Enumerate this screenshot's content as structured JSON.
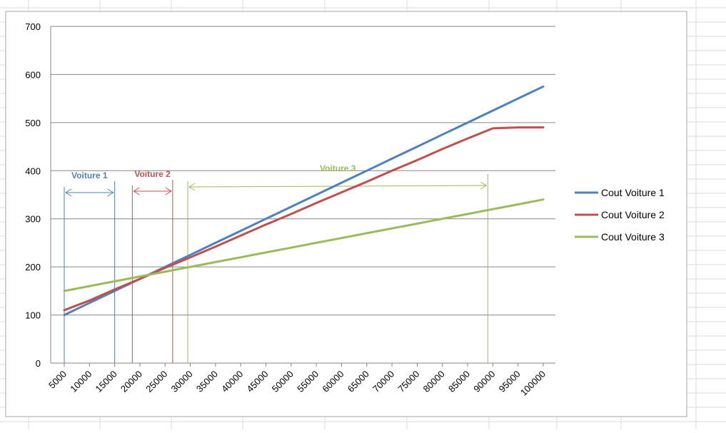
{
  "chart_data": {
    "type": "line",
    "title": "",
    "xlabel": "",
    "ylabel": "",
    "categories": [
      "5000",
      "10000",
      "15000",
      "20000",
      "25000",
      "30000",
      "35000",
      "40000",
      "45000",
      "50000",
      "55000",
      "60000",
      "65000",
      "70000",
      "75000",
      "80000",
      "85000",
      "90000",
      "95000",
      "100000"
    ],
    "ylim": [
      0,
      700
    ],
    "yticks": [
      0,
      100,
      200,
      300,
      400,
      500,
      600,
      700
    ],
    "grid": true,
    "legend": "right",
    "series": [
      {
        "name": "Cout Voiture 1",
        "color": "#4F81BD",
        "values": [
          100,
          125,
          150,
          175,
          200,
          225,
          250,
          275,
          300,
          325,
          350,
          375,
          400,
          425,
          450,
          475,
          500,
          525,
          550,
          575
        ]
      },
      {
        "name": "Cout Voiture 2",
        "color": "#C0504D",
        "values": [
          110,
          130,
          153,
          175,
          198,
          220,
          242,
          265,
          288,
          310,
          333,
          355,
          377,
          400,
          422,
          445,
          467,
          488,
          490,
          490
        ]
      },
      {
        "name": "Cout Voiture 3",
        "color": "#9BBB59",
        "values": [
          150,
          160,
          170,
          180,
          190,
          200,
          210,
          220,
          230,
          240,
          250,
          260,
          270,
          280,
          290,
          300,
          310,
          320,
          330,
          340
        ]
      }
    ],
    "annotations": [
      {
        "label": "Voiture 1",
        "color": "#4F81BD",
        "from": 5000,
        "to": 15000
      },
      {
        "label": "Voiture 2",
        "color": "#C0504D",
        "from": 18500,
        "to": 26500
      },
      {
        "label": "Voiture 3",
        "color": "#9BBB59",
        "from": 29500,
        "to": 89000
      }
    ]
  }
}
